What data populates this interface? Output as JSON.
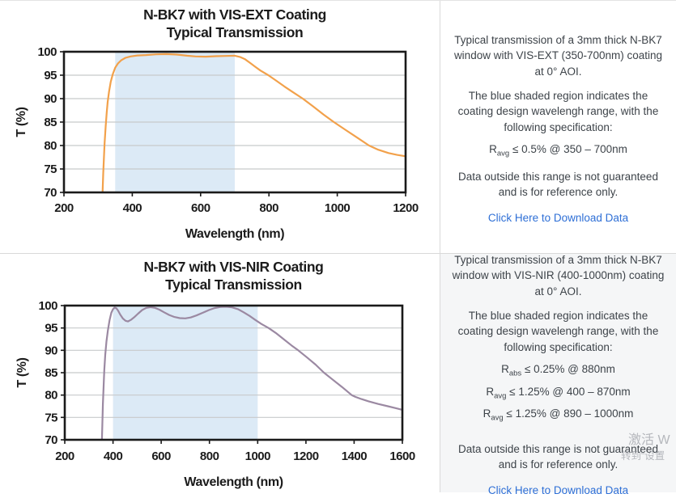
{
  "chart_data": [
    {
      "type": "line",
      "title": "N-BK7 with VIS-EXT Coating",
      "subtitle": "Typical Transmission",
      "xlabel": "Wavelength (nm)",
      "ylabel": "T (%)",
      "xlim": [
        200,
        1200
      ],
      "ylim": [
        70,
        100
      ],
      "xticks": [
        200,
        400,
        600,
        800,
        1000,
        1200
      ],
      "yticks": [
        70,
        75,
        80,
        85,
        90,
        95,
        100
      ],
      "grid": "horizontal",
      "shaded_region": [
        350,
        700
      ],
      "shade_color": "#dceaf6",
      "line_color": "#f2a14b",
      "series": [
        {
          "name": "Transmission",
          "points": [
            [
              313,
              70
            ],
            [
              315,
              74
            ],
            [
              317,
              77.5
            ],
            [
              319,
              80.5
            ],
            [
              322,
              84
            ],
            [
              325,
              87
            ],
            [
              328,
              89.3
            ],
            [
              332,
              91.5
            ],
            [
              337,
              93.6
            ],
            [
              343,
              95.2
            ],
            [
              350,
              96.6
            ],
            [
              358,
              97.5
            ],
            [
              368,
              98.2
            ],
            [
              380,
              98.7
            ],
            [
              395,
              99
            ],
            [
              415,
              99.2
            ],
            [
              440,
              99.3
            ],
            [
              470,
              99.45
            ],
            [
              500,
              99.5
            ],
            [
              530,
              99.4
            ],
            [
              560,
              99.15
            ],
            [
              585,
              99
            ],
            [
              615,
              98.95
            ],
            [
              645,
              99.05
            ],
            [
              675,
              99.1
            ],
            [
              700,
              99.15
            ],
            [
              715,
              98.9
            ],
            [
              730,
              98.4
            ],
            [
              745,
              97.6
            ],
            [
              760,
              96.8
            ],
            [
              775,
              96
            ],
            [
              798,
              95
            ],
            [
              820,
              93.9
            ],
            [
              845,
              92.6
            ],
            [
              870,
              91.4
            ],
            [
              899,
              90
            ],
            [
              930,
              88.3
            ],
            [
              960,
              86.6
            ],
            [
              990,
              85
            ],
            [
              1025,
              83.3
            ],
            [
              1060,
              81.6
            ],
            [
              1093,
              80
            ],
            [
              1120,
              79.1
            ],
            [
              1150,
              78.4
            ],
            [
              1175,
              78
            ],
            [
              1200,
              77.7
            ]
          ]
        }
      ]
    },
    {
      "type": "line",
      "title": "N-BK7 with VIS-NIR Coating",
      "subtitle": "Typical Transmission",
      "xlabel": "Wavelength (nm)",
      "ylabel": "T (%)",
      "xlim": [
        200,
        1600
      ],
      "ylim": [
        70,
        100
      ],
      "xticks": [
        200,
        400,
        600,
        800,
        1000,
        1200,
        1400,
        1600
      ],
      "yticks": [
        70,
        75,
        80,
        85,
        90,
        95,
        100
      ],
      "grid": "horizontal",
      "shaded_region": [
        400,
        1000
      ],
      "shade_color": "#dceaf6",
      "line_color": "#9b89a2",
      "series": [
        {
          "name": "Transmission",
          "points": [
            [
              354,
              70
            ],
            [
              356,
              74
            ],
            [
              358,
              78
            ],
            [
              361,
              82
            ],
            [
              364,
              85.5
            ],
            [
              368,
              89
            ],
            [
              373,
              92
            ],
            [
              379,
              94.5
            ],
            [
              386,
              96.8
            ],
            [
              393,
              98.4
            ],
            [
              400,
              99.2
            ],
            [
              407,
              99.55
            ],
            [
              414,
              99.4
            ],
            [
              421,
              98.9
            ],
            [
              430,
              98
            ],
            [
              441,
              97.1
            ],
            [
              452,
              96.6
            ],
            [
              462,
              96.45
            ],
            [
              474,
              96.8
            ],
            [
              488,
              97.4
            ],
            [
              504,
              98.2
            ],
            [
              521,
              99
            ],
            [
              538,
              99.5
            ],
            [
              556,
              99.65
            ],
            [
              574,
              99.5
            ],
            [
              592,
              99.1
            ],
            [
              612,
              98.5
            ],
            [
              633,
              97.9
            ],
            [
              655,
              97.45
            ],
            [
              677,
              97.2
            ],
            [
              700,
              97.15
            ],
            [
              722,
              97.35
            ],
            [
              746,
              97.8
            ],
            [
              772,
              98.4
            ],
            [
              798,
              99
            ],
            [
              822,
              99.45
            ],
            [
              846,
              99.7
            ],
            [
              870,
              99.75
            ],
            [
              894,
              99.6
            ],
            [
              918,
              99.2
            ],
            [
              942,
              98.5
            ],
            [
              966,
              97.7
            ],
            [
              990,
              96.8
            ],
            [
              1015,
              95.9
            ],
            [
              1045,
              95
            ],
            [
              1075,
              93.9
            ],
            [
              1110,
              92.4
            ],
            [
              1140,
              91.1
            ],
            [
              1168,
              90
            ],
            [
              1205,
              88.4
            ],
            [
              1240,
              86.8
            ],
            [
              1275,
              85
            ],
            [
              1310,
              83.5
            ],
            [
              1350,
              81.8
            ],
            [
              1390,
              80
            ],
            [
              1405,
              79.6
            ],
            [
              1430,
              79.1
            ],
            [
              1460,
              78.6
            ],
            [
              1500,
              78
            ],
            [
              1540,
              77.5
            ],
            [
              1570,
              77.1
            ],
            [
              1600,
              76.7
            ]
          ]
        }
      ]
    }
  ],
  "panels": [
    {
      "p1": "Typical transmission of a 3mm thick N-BK7 window with VIS-EXT (350-700nm) coating at 0° AOI.",
      "p2": "The blue shaded region indicates the coating design wavelengh range, with the following specification:",
      "specs": [
        {
          "base": "R",
          "sub": "avg",
          "rest": " ≤ 0.5% @ 350 – 700nm"
        }
      ],
      "p3": "Data outside this range is not guaranteed and is for reference only.",
      "link": "Click Here to Download Data"
    },
    {
      "p1": "Typical transmission of a 3mm thick N-BK7 window with VIS-NIR (400-1000nm) coating at 0° AOI.",
      "p2": "The blue shaded region indicates the coating design wavelengh range, with the following specification:",
      "specs": [
        {
          "base": "R",
          "sub": "abs",
          "rest": " ≤ 0.25% @ 880nm"
        },
        {
          "base": "R",
          "sub": "avg",
          "rest": " ≤ 1.25% @ 400 – 870nm"
        },
        {
          "base": "R",
          "sub": "avg",
          "rest": " ≤ 1.25% @ 890 – 1000nm"
        }
      ],
      "p3": "Data outside this range is not guaranteed and is for reference only.",
      "link": "Click Here to Download Data"
    }
  ],
  "watermark": {
    "line1": "激活 W",
    "line2": "转到“设置"
  }
}
